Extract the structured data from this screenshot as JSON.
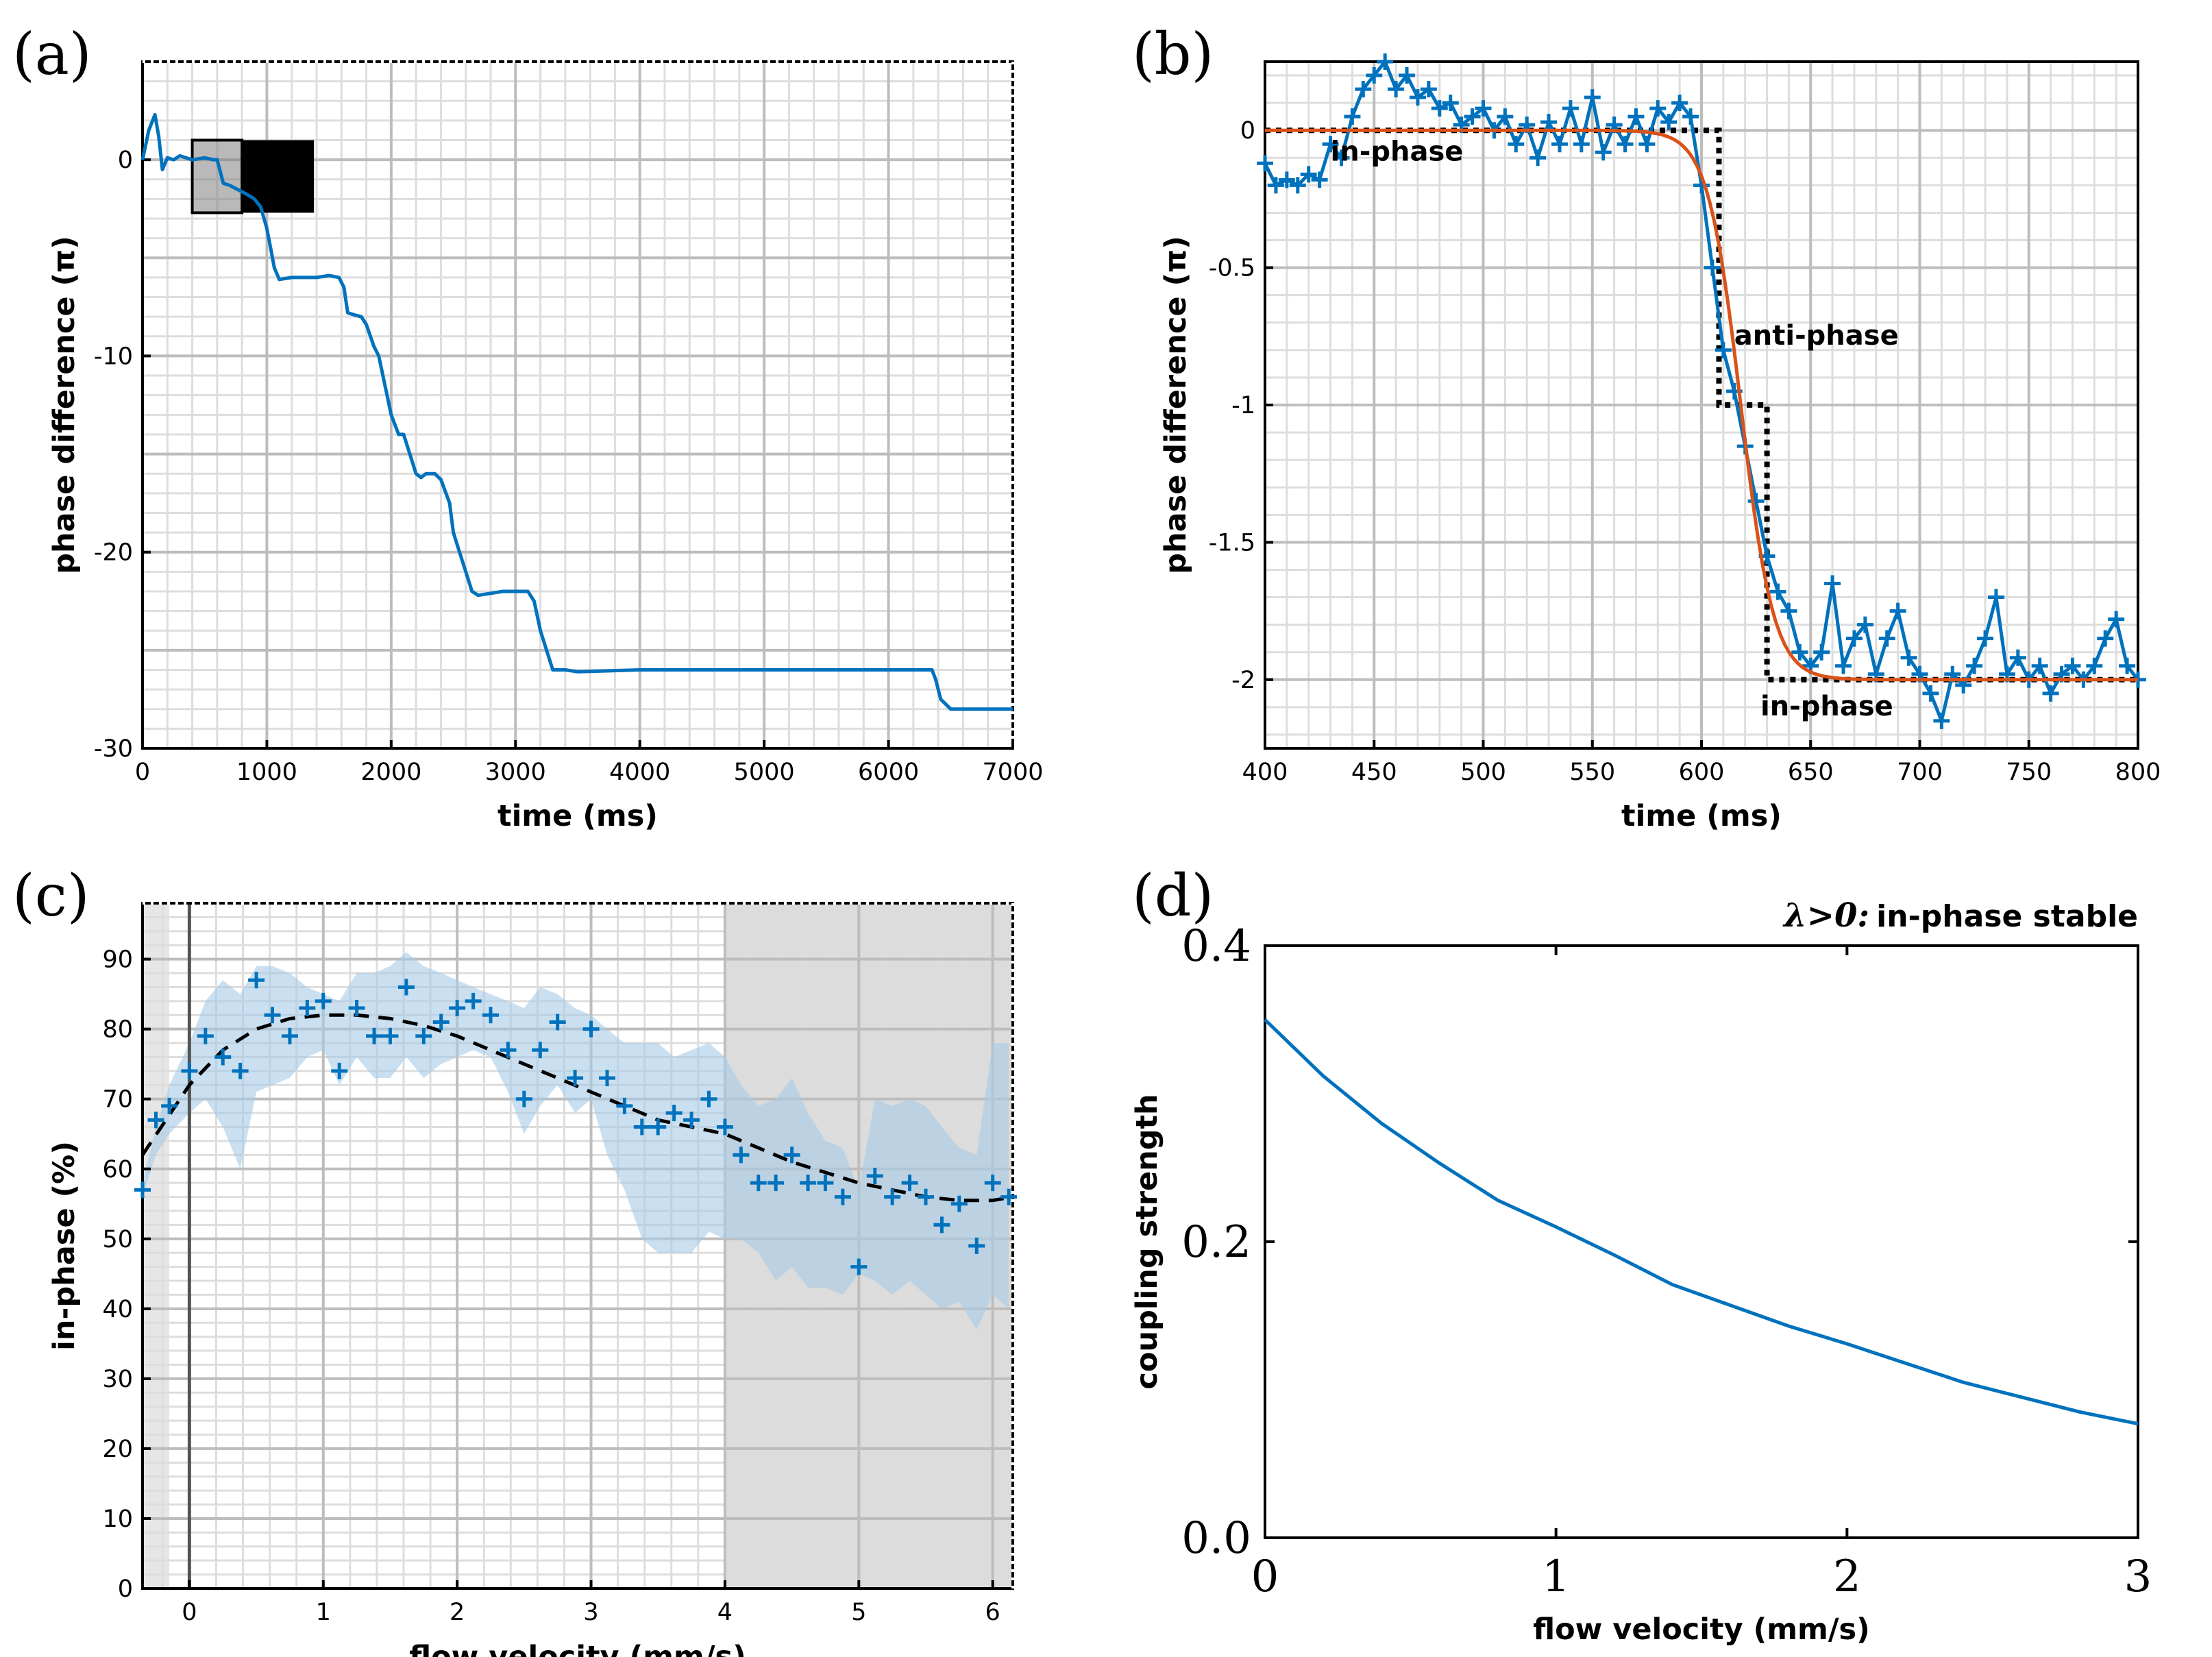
{
  "colors": {
    "data": "#0072bd",
    "fit": "#d95319",
    "band": "#a6cbe8",
    "grid": "#dddddd",
    "gridMajor": "#bdbdbd",
    "shade": "#bfbfbf"
  },
  "chart_data": [
    {
      "id": "a",
      "panel_label": "(a)",
      "type": "line",
      "xlabel": "time (ms)",
      "ylabel": "phase difference (π)",
      "xlim": [
        0,
        7000
      ],
      "ylim": [
        -30,
        5
      ],
      "xticks": [
        0,
        1000,
        2000,
        3000,
        4000,
        5000,
        6000,
        7000
      ],
      "yticks": [
        -30,
        -20,
        -10,
        0
      ],
      "inset_label": "(b)",
      "series": [
        {
          "x": [
            0,
            50,
            100,
            130,
            160,
            200,
            250,
            300,
            400,
            500,
            570,
            600,
            650,
            700,
            790,
            850,
            900,
            950,
            1000,
            1030,
            1060,
            1100,
            1200,
            1300,
            1400,
            1500,
            1580,
            1620,
            1650,
            1700,
            1760,
            1800,
            1860,
            1900,
            1950,
            2000,
            2060,
            2100,
            2150,
            2200,
            2240,
            2280,
            2350,
            2400,
            2470,
            2500,
            2550,
            2600,
            2650,
            2700,
            2800,
            2900,
            3000,
            3100,
            3150,
            3200,
            3250,
            3300,
            3400,
            3500,
            4000,
            4500,
            5000,
            5500,
            6000,
            6350,
            6380,
            6420,
            6500,
            6700,
            7000
          ],
          "y": [
            0,
            1.5,
            2.3,
            1.2,
            -0.5,
            0.1,
            0,
            0.2,
            0,
            0.1,
            0,
            0,
            -1.2,
            -1.3,
            -1.6,
            -1.8,
            -2,
            -2.4,
            -3.5,
            -4.5,
            -5.5,
            -6.1,
            -6,
            -6,
            -6,
            -5.9,
            -6,
            -6.5,
            -7.8,
            -7.9,
            -8,
            -8.4,
            -9.5,
            -10,
            -11.5,
            -13,
            -14,
            -14,
            -15,
            -16,
            -16.2,
            -16,
            -16,
            -16.3,
            -17.5,
            -19,
            -20,
            -21,
            -22,
            -22.2,
            -22.1,
            -22,
            -22,
            -22,
            -22.5,
            -24,
            -25,
            -26,
            -26,
            -26.1,
            -26,
            -26,
            -26,
            -26,
            -26,
            -26,
            -26.5,
            -27.5,
            -28,
            -28,
            -28
          ]
        }
      ]
    },
    {
      "id": "b",
      "panel_label": "(b)",
      "type": "line",
      "xlabel": "time (ms)",
      "ylabel": "phase difference (π)",
      "xlim": [
        400,
        800
      ],
      "ylim": [
        -2.25,
        0.25
      ],
      "xticks": [
        400,
        450,
        500,
        550,
        600,
        650,
        700,
        750,
        800
      ],
      "yticks": [
        0,
        -0.5,
        -1,
        -1.5,
        -2
      ],
      "ytick_labels": [
        "0",
        "-0.5",
        "-1",
        "-1.5",
        "-2"
      ],
      "annotations": [
        "in-phase",
        "anti-phase",
        "in-phase"
      ],
      "series": [
        {
          "type": "data",
          "x": [
            400,
            405,
            410,
            415,
            420,
            425,
            430,
            435,
            440,
            445,
            450,
            455,
            460,
            465,
            470,
            475,
            480,
            485,
            490,
            495,
            500,
            505,
            510,
            515,
            520,
            525,
            530,
            535,
            540,
            545,
            550,
            555,
            560,
            565,
            570,
            575,
            580,
            585,
            590,
            595,
            600,
            605,
            610,
            615,
            620,
            625,
            630,
            635,
            640,
            645,
            650,
            655,
            660,
            665,
            670,
            675,
            680,
            685,
            690,
            695,
            700,
            705,
            710,
            715,
            720,
            725,
            730,
            735,
            740,
            745,
            750,
            755,
            760,
            765,
            770,
            775,
            780,
            785,
            790,
            795,
            800
          ],
          "y": [
            -0.12,
            -0.2,
            -0.18,
            -0.2,
            -0.16,
            -0.18,
            -0.05,
            -0.1,
            0.05,
            0.15,
            0.2,
            0.25,
            0.15,
            0.2,
            0.12,
            0.15,
            0.08,
            0.1,
            0.02,
            0.05,
            0.08,
            0,
            0.05,
            -0.05,
            0.02,
            -0.1,
            0.03,
            -0.05,
            0.08,
            -0.05,
            0.12,
            -0.08,
            0.02,
            -0.05,
            0.05,
            -0.05,
            0.08,
            0.03,
            0.1,
            0.05,
            -0.2,
            -0.5,
            -0.8,
            -0.95,
            -1.15,
            -1.35,
            -1.55,
            -1.68,
            -1.75,
            -1.9,
            -1.95,
            -1.9,
            -1.65,
            -1.95,
            -1.85,
            -1.8,
            -1.98,
            -1.85,
            -1.75,
            -1.92,
            -1.98,
            -2.05,
            -2.15,
            -1.98,
            -2.02,
            -1.95,
            -1.85,
            -1.7,
            -1.98,
            -1.92,
            -2.0,
            -1.95,
            -2.05,
            -1.98,
            -1.95,
            -2.0,
            -1.95,
            -1.85,
            -1.78,
            -1.95,
            -2.0
          ]
        },
        {
          "type": "fit_sigmoid",
          "center": 618,
          "width": 7.5,
          "low": -2,
          "high": 0
        },
        {
          "type": "step",
          "x": [
            400,
            608,
            608,
            630,
            630,
            800
          ],
          "y": [
            0,
            0,
            -1,
            -1,
            -2,
            -2
          ]
        }
      ]
    },
    {
      "id": "c",
      "panel_label": "(c)",
      "type": "scatter",
      "xlabel": "flow velocity (mm/s)",
      "ylabel": "in-phase (%)",
      "xlim": [
        -0.35,
        6.15
      ],
      "ylim": [
        0,
        98
      ],
      "xticks": [
        0,
        1,
        2,
        3,
        4,
        5,
        6
      ],
      "yticks": [
        0,
        10,
        20,
        30,
        40,
        50,
        60,
        70,
        80,
        90
      ],
      "shaded_region": [
        4,
        6.15
      ],
      "vline": 0,
      "series": [
        {
          "type": "points",
          "x": [
            -0.35,
            -0.25,
            -0.15,
            0,
            0.12,
            0.25,
            0.38,
            0.5,
            0.62,
            0.75,
            0.88,
            1.0,
            1.12,
            1.25,
            1.38,
            1.5,
            1.62,
            1.75,
            1.88,
            2.0,
            2.12,
            2.25,
            2.38,
            2.5,
            2.62,
            2.75,
            2.88,
            3.0,
            3.12,
            3.25,
            3.38,
            3.5,
            3.62,
            3.75,
            3.88,
            4.0,
            4.12,
            4.25,
            4.38,
            4.5,
            4.62,
            4.75,
            4.88,
            5.0,
            5.12,
            5.25,
            5.38,
            5.5,
            5.62,
            5.75,
            5.88,
            6.0,
            6.12
          ],
          "y": [
            57,
            67,
            69,
            74,
            79,
            76,
            74,
            87,
            82,
            79,
            83,
            84,
            74,
            83,
            79,
            79,
            86,
            79,
            81,
            83,
            84,
            82,
            77,
            70,
            77,
            81,
            73,
            80,
            73,
            69,
            66,
            66,
            68,
            67,
            70,
            66,
            62,
            58,
            58,
            62,
            58,
            58,
            56,
            46,
            59,
            56,
            58,
            56,
            52,
            55,
            49,
            58,
            56
          ]
        },
        {
          "type": "band_upper",
          "y": [
            58,
            66,
            72,
            78,
            84,
            87,
            85,
            89,
            89,
            88,
            86,
            85,
            84,
            88,
            88,
            89,
            91,
            89,
            88,
            87,
            86,
            85,
            84,
            83,
            86,
            85,
            83,
            82,
            80,
            78,
            78,
            78,
            76,
            77,
            78,
            76,
            72,
            69,
            70,
            73,
            68,
            64,
            63,
            57,
            70,
            69,
            70,
            69,
            66,
            63,
            62,
            78,
            78
          ]
        },
        {
          "type": "band_lower",
          "y": [
            56,
            62,
            65,
            68,
            70,
            66,
            60,
            71,
            72,
            73,
            76,
            77,
            72,
            76,
            73,
            73,
            76,
            73,
            75,
            76,
            77,
            76,
            71,
            65,
            69,
            72,
            68,
            70,
            62,
            57,
            50,
            48,
            48,
            48,
            51,
            50,
            50,
            48,
            44,
            46,
            43,
            43,
            42,
            45,
            44,
            42,
            44,
            42,
            40,
            41,
            37,
            42,
            40
          ]
        },
        {
          "type": "trend",
          "x": [
            -0.35,
            0,
            0.25,
            0.5,
            0.75,
            1.0,
            1.25,
            1.5,
            1.75,
            2.0,
            2.25,
            2.5,
            2.75,
            3.0,
            3.25,
            3.5,
            3.75,
            4.0,
            4.25,
            4.5,
            4.75,
            5.0,
            5.25,
            5.5,
            5.75,
            6.0,
            6.15
          ],
          "y": [
            62,
            72,
            77,
            80,
            81.5,
            82,
            82,
            81.5,
            80.5,
            79,
            77,
            75,
            73,
            71,
            69,
            67,
            66,
            65,
            63,
            61,
            59.5,
            58,
            57,
            56,
            55.5,
            55.5,
            56
          ]
        }
      ]
    },
    {
      "id": "d",
      "panel_label": "(d)",
      "type": "line",
      "xlabel": "flow velocity (mm/s)",
      "ylabel": "coupling strength",
      "xlim": [
        0,
        3
      ],
      "ylim": [
        0,
        0.4
      ],
      "xticks": [
        0,
        1,
        2,
        3
      ],
      "yticks": [
        0,
        0.2,
        0.4
      ],
      "ytick_labels": [
        "0.0",
        "0.2",
        "0.4"
      ],
      "annotation_symbol": "λ>0:",
      "annotation_text": "in-phase stable",
      "series": [
        {
          "x": [
            0,
            0.2,
            0.4,
            0.6,
            0.8,
            1.0,
            1.2,
            1.4,
            1.6,
            1.8,
            2.0,
            2.2,
            2.4,
            2.6,
            2.8,
            3.0
          ],
          "y": [
            0.35,
            0.312,
            0.28,
            0.253,
            0.228,
            0.21,
            0.191,
            0.171,
            0.157,
            0.143,
            0.131,
            0.118,
            0.105,
            0.095,
            0.085,
            0.077
          ]
        }
      ]
    }
  ]
}
